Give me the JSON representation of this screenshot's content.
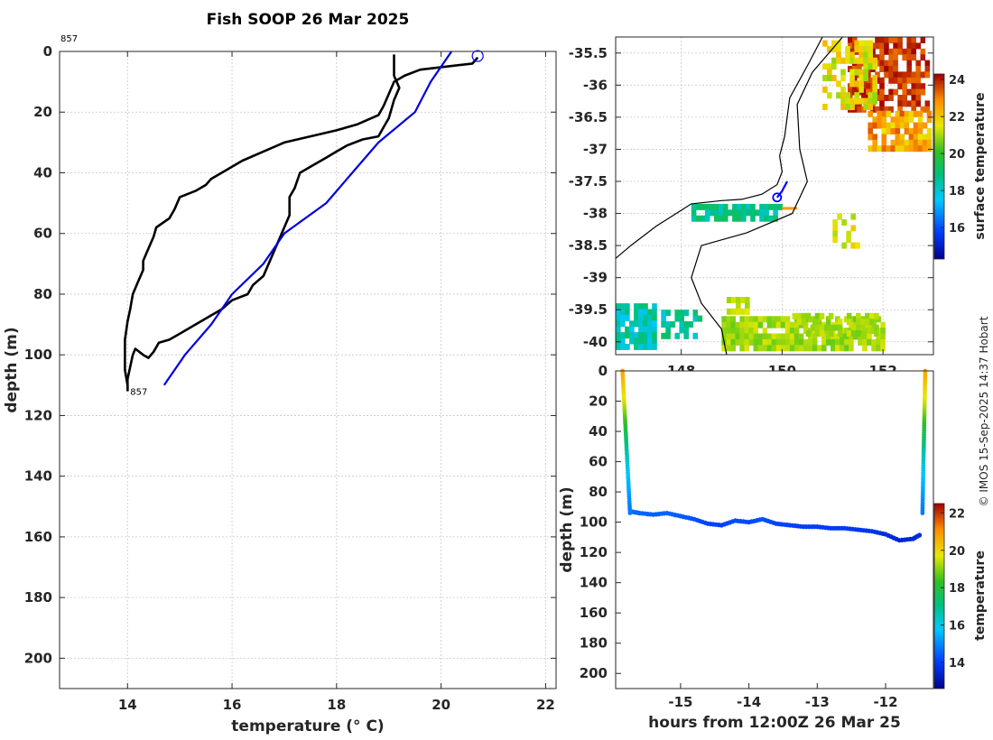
{
  "title": "Fish SOOP 26 Mar 2025",
  "credit": "© IMOS 15-Sep-2025 14:37 Hobart",
  "chart_data": [
    {
      "id": "profile",
      "type": "line",
      "xlabel": "temperature (° C)",
      "ylabel": "depth (m)",
      "xlim": [
        12.7,
        22.2
      ],
      "ylim": [
        0,
        210
      ],
      "xticks": [
        14,
        16,
        18,
        20,
        22
      ],
      "yticks": [
        0,
        20,
        40,
        60,
        80,
        100,
        120,
        140,
        160,
        180,
        200
      ],
      "grid": true,
      "profile_label_top": "857",
      "profile_label_bottom": "857",
      "start_marker": {
        "temp": 20.7,
        "depth": 1.5
      },
      "series": [
        {
          "name": "profile-down",
          "color": "#000000",
          "points": [
            [
              20.7,
              2
            ],
            [
              20.6,
              4
            ],
            [
              19.6,
              6
            ],
            [
              19.3,
              8
            ],
            [
              19.1,
              10
            ],
            [
              19.0,
              14
            ],
            [
              18.9,
              18
            ],
            [
              18.8,
              21
            ],
            [
              18.4,
              24
            ],
            [
              18.0,
              26
            ],
            [
              17.5,
              28
            ],
            [
              17.0,
              30
            ],
            [
              16.6,
              33
            ],
            [
              16.2,
              36
            ],
            [
              15.9,
              39
            ],
            [
              15.6,
              42
            ],
            [
              15.5,
              44
            ],
            [
              15.3,
              46
            ],
            [
              15.0,
              48
            ],
            [
              14.9,
              52
            ],
            [
              14.8,
              55
            ],
            [
              14.55,
              58
            ],
            [
              14.5,
              61
            ],
            [
              14.4,
              65
            ],
            [
              14.3,
              69
            ],
            [
              14.3,
              72
            ],
            [
              14.2,
              76
            ],
            [
              14.1,
              80
            ],
            [
              14.05,
              85
            ],
            [
              14.0,
              89
            ],
            [
              13.95,
              95
            ],
            [
              13.95,
              100
            ],
            [
              13.95,
              105
            ],
            [
              14.0,
              110
            ],
            [
              14.0,
              112
            ]
          ]
        },
        {
          "name": "profile-up",
          "color": "#000000",
          "points": [
            [
              14.0,
              112
            ],
            [
              14.0,
              108
            ],
            [
              14.05,
              104
            ],
            [
              14.1,
              100
            ],
            [
              14.15,
              98
            ],
            [
              14.3,
              100
            ],
            [
              14.4,
              101
            ],
            [
              14.5,
              99
            ],
            [
              14.6,
              96
            ],
            [
              14.8,
              95
            ],
            [
              15.0,
              93
            ],
            [
              15.3,
              90
            ],
            [
              15.6,
              87
            ],
            [
              15.8,
              85
            ],
            [
              16.0,
              82
            ],
            [
              16.3,
              80
            ],
            [
              16.4,
              77
            ],
            [
              16.6,
              74
            ],
            [
              16.7,
              70
            ],
            [
              16.8,
              66
            ],
            [
              16.9,
              62
            ],
            [
              17.0,
              58
            ],
            [
              17.1,
              54
            ],
            [
              17.1,
              48
            ],
            [
              17.2,
              45
            ],
            [
              17.3,
              40
            ],
            [
              17.5,
              38
            ],
            [
              17.8,
              35
            ],
            [
              18.0,
              33
            ],
            [
              18.2,
              31
            ],
            [
              18.5,
              29
            ],
            [
              18.8,
              28
            ],
            [
              18.9,
              25
            ],
            [
              19.0,
              22
            ],
            [
              19.1,
              16
            ],
            [
              19.2,
              12
            ],
            [
              19.1,
              8
            ],
            [
              19.1,
              5
            ],
            [
              19.1,
              1
            ]
          ]
        },
        {
          "name": "climatology",
          "color": "#0000dd",
          "points": [
            [
              20.2,
              0
            ],
            [
              19.8,
              10
            ],
            [
              19.5,
              20
            ],
            [
              18.8,
              30
            ],
            [
              18.3,
              40
            ],
            [
              17.8,
              50
            ],
            [
              17.0,
              60
            ],
            [
              16.6,
              70
            ],
            [
              16.0,
              80
            ],
            [
              15.6,
              90
            ],
            [
              15.1,
              100
            ],
            [
              14.7,
              110
            ]
          ]
        }
      ]
    },
    {
      "id": "map",
      "type": "heatmap",
      "xlim": [
        146.7,
        153.0
      ],
      "ylim": [
        -40.2,
        -35.25
      ],
      "xticks": [
        148,
        150,
        152
      ],
      "yticks": [
        -35.5,
        -36,
        -36.5,
        -37,
        -37.5,
        -38,
        -38.5,
        -39,
        -39.5,
        -40
      ],
      "colorbar_label": "surface temperature",
      "colorbar_range": [
        14.3,
        24.3
      ],
      "colorbar_ticks": [
        16,
        18,
        20,
        22,
        24
      ],
      "ship_track": [
        [
          149.9,
          -37.75
        ],
        [
          150.0,
          -37.65
        ],
        [
          150.1,
          -37.5
        ]
      ],
      "coastline": [
        [
          146.7,
          -38.7
        ],
        [
          147.0,
          -38.5
        ],
        [
          147.5,
          -38.2
        ],
        [
          147.9,
          -38.0
        ],
        [
          148.2,
          -37.85
        ],
        [
          148.8,
          -37.8
        ],
        [
          149.2,
          -37.78
        ],
        [
          149.6,
          -37.7
        ],
        [
          149.9,
          -37.55
        ],
        [
          150.0,
          -37.35
        ],
        [
          149.95,
          -37.1
        ],
        [
          150.05,
          -36.8
        ],
        [
          150.1,
          -36.5
        ],
        [
          150.15,
          -36.2
        ],
        [
          150.5,
          -35.7
        ],
        [
          150.8,
          -35.25
        ]
      ],
      "shelf_edge": [
        [
          151.2,
          -35.25
        ],
        [
          150.6,
          -35.8
        ],
        [
          150.3,
          -36.3
        ],
        [
          150.35,
          -37.0
        ],
        [
          150.5,
          -37.5
        ],
        [
          150.2,
          -38.0
        ],
        [
          149.3,
          -38.3
        ],
        [
          148.4,
          -38.5
        ],
        [
          148.2,
          -39.0
        ],
        [
          148.4,
          -39.4
        ],
        [
          148.8,
          -39.8
        ],
        [
          148.9,
          -40.2
        ]
      ]
    },
    {
      "id": "track",
      "type": "scatter",
      "xlabel": "hours from 12:00Z 26 Mar 25",
      "ylabel": "depth (m)",
      "xlim": [
        -15.95,
        -11.3
      ],
      "ylim": [
        0,
        210
      ],
      "xticks": [
        -15,
        -14,
        -13,
        -12
      ],
      "yticks": [
        0,
        20,
        40,
        60,
        80,
        100,
        120,
        140,
        160,
        180,
        200
      ],
      "colorbar_label": "temperature",
      "colorbar_range": [
        12.6,
        22.5
      ],
      "colorbar_ticks": [
        14,
        16,
        18,
        20,
        22
      ],
      "bottom": [
        [
          -15.72,
          93
        ],
        [
          -15.6,
          94
        ],
        [
          -15.4,
          95
        ],
        [
          -15.2,
          94
        ],
        [
          -15.0,
          96
        ],
        [
          -14.8,
          98
        ],
        [
          -14.6,
          101
        ],
        [
          -14.4,
          102
        ],
        [
          -14.2,
          99
        ],
        [
          -14.0,
          100
        ],
        [
          -13.8,
          98
        ],
        [
          -13.6,
          101
        ],
        [
          -13.4,
          102
        ],
        [
          -13.2,
          103
        ],
        [
          -13.0,
          103
        ],
        [
          -12.8,
          104
        ],
        [
          -12.6,
          104
        ],
        [
          -12.4,
          105
        ],
        [
          -12.2,
          106
        ],
        [
          -12.0,
          108
        ],
        [
          -11.8,
          112
        ],
        [
          -11.6,
          111
        ],
        [
          -11.48,
          108
        ]
      ],
      "profile": [
        [
          0,
          20.7
        ],
        [
          5,
          20.5
        ],
        [
          10,
          20.2
        ],
        [
          15,
          19.9
        ],
        [
          20,
          19.6
        ],
        [
          25,
          19.2
        ],
        [
          30,
          18.7
        ],
        [
          35,
          18.3
        ],
        [
          40,
          17.8
        ],
        [
          45,
          17.4
        ],
        [
          50,
          17.0
        ],
        [
          55,
          16.6
        ],
        [
          60,
          16.3
        ],
        [
          65,
          16.0
        ],
        [
          70,
          15.7
        ],
        [
          75,
          15.5
        ],
        [
          80,
          15.3
        ],
        [
          85,
          15.1
        ],
        [
          90,
          14.9
        ],
        [
          94,
          14.8
        ]
      ]
    }
  ]
}
